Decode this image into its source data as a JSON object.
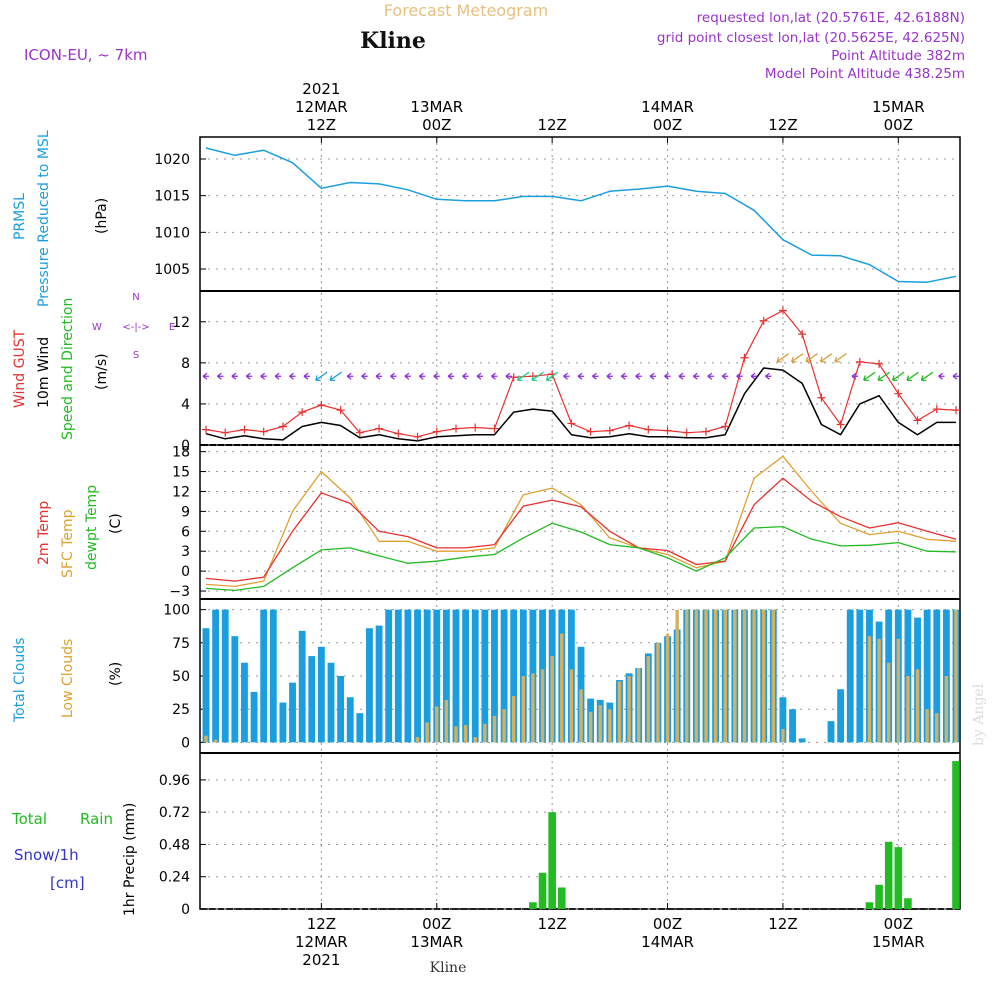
{
  "header": {
    "title": "Forecast Meteogram",
    "location": "Kline",
    "model": "ICON-EU, ~ 7km",
    "requested": "requested lon,lat (20.5761E, 42.6188N)",
    "gridpoint": "grid point closest lon,lat (20.5625E, 42.625N)",
    "point_altitude": "Point Altitude 382m",
    "model_altitude": "Model Point Altitude 438.25m",
    "watermark": "by Angel",
    "footer_location": "Kline"
  },
  "time_axis": {
    "start": "2021-03-12 00Z",
    "end": "2021-03-15 06Z",
    "top_ticks": [
      {
        "h": 12,
        "lines": [
          "2021",
          "12MAR",
          "12Z"
        ]
      },
      {
        "h": 24,
        "lines": [
          "13MAR",
          "00Z"
        ]
      },
      {
        "h": 36,
        "lines": [
          "12Z"
        ]
      },
      {
        "h": 48,
        "lines": [
          "14MAR",
          "00Z"
        ]
      },
      {
        "h": 60,
        "lines": [
          "12Z"
        ]
      },
      {
        "h": 72,
        "lines": [
          "15MAR",
          "00Z"
        ]
      }
    ],
    "bottom_ticks": [
      {
        "h": 12,
        "lines": [
          "12Z",
          "12MAR",
          "2021"
        ]
      },
      {
        "h": 24,
        "lines": [
          "00Z",
          "13MAR"
        ]
      },
      {
        "h": 36,
        "lines": [
          "12Z"
        ]
      },
      {
        "h": 48,
        "lines": [
          "00Z",
          "14MAR"
        ]
      },
      {
        "h": 60,
        "lines": [
          "12Z"
        ]
      },
      {
        "h": 72,
        "lines": [
          "00Z",
          "15MAR"
        ]
      }
    ]
  },
  "colors": {
    "pressure": "#1a9ee0",
    "gust": "#e83030",
    "wind": "#000000",
    "direction": "#22bb22",
    "arrows": "#8a2be2",
    "temp2m": "#e83030",
    "sfctemp": "#e0a030",
    "dewpt": "#22bb22",
    "total_clouds": "#1a9ee0",
    "low_clouds": "#d4b060",
    "rain": "#22bb22",
    "snow": "#3333cc",
    "header_title": "#e8c080",
    "header_info": "#9933cc"
  },
  "panels": {
    "pressure": {
      "labels": [
        "PRMSL",
        "Pressure Reduced to MSL",
        "(hPa)"
      ],
      "ticks": [
        1005,
        1010,
        1015,
        1020
      ]
    },
    "wind": {
      "labels": [
        "Wind GUST",
        "10m Wind",
        "Speed and Direction",
        "(m/s)"
      ],
      "ticks": [
        0,
        4,
        8,
        12
      ],
      "compass": {
        "n": "N",
        "s": "S",
        "w": "W",
        "e": "E",
        "v": "^\n|\nv",
        "h": "<-|->"
      }
    },
    "temperature": {
      "labels": [
        "2m Temp",
        "SFC Temp",
        "dewpt Temp",
        "(C)"
      ],
      "ticks": [
        -3,
        0,
        3,
        6,
        9,
        12,
        15,
        18
      ]
    },
    "clouds": {
      "labels": [
        "Total Clouds",
        "Low Clouds",
        "(%)"
      ],
      "ticks": [
        0,
        25,
        50,
        75,
        100
      ]
    },
    "precip": {
      "labels": [
        "Total",
        "Rain",
        "Snow/1h",
        "[cm]",
        "1hr Precip (mm)"
      ],
      "ticks": [
        0,
        0.24,
        0.48,
        0.72,
        0.96
      ]
    }
  },
  "chart_data": [
    {
      "type": "line",
      "title": "PRMSL Pressure Reduced to MSL",
      "ylabel": "(hPa)",
      "ylim": [
        1002,
        1023
      ],
      "x_hours": [
        0,
        3,
        6,
        9,
        12,
        15,
        18,
        21,
        24,
        27,
        30,
        33,
        36,
        39,
        42,
        45,
        48,
        51,
        54,
        57,
        60,
        63,
        66,
        69,
        72,
        75,
        78
      ],
      "series": [
        {
          "name": "PRMSL",
          "values": [
            1021.5,
            1020.5,
            1021.2,
            1019.5,
            1016,
            1016.8,
            1016.6,
            1015.8,
            1014.5,
            1014.3,
            1014.3,
            1014.9,
            1014.9,
            1014.3,
            1015.6,
            1015.9,
            1016.3,
            1015.6,
            1015.3,
            1013,
            1009,
            1006.9,
            1006.8,
            1005.6,
            1003.3,
            1003.2,
            1004
          ]
        }
      ]
    },
    {
      "type": "line",
      "title": "Wind GUST / 10m Wind",
      "ylabel": "(m/s)",
      "ylim": [
        0,
        15
      ],
      "x_hours": [
        0,
        2,
        4,
        6,
        8,
        10,
        12,
        14,
        16,
        18,
        20,
        22,
        24,
        26,
        28,
        30,
        32,
        34,
        36,
        38,
        40,
        42,
        44,
        46,
        48,
        50,
        52,
        54,
        56,
        58,
        60,
        62,
        64,
        66,
        68,
        70,
        72,
        74,
        76,
        78
      ],
      "series": [
        {
          "name": "Wind GUST",
          "values": [
            1.5,
            1.2,
            1.5,
            1.3,
            1.8,
            3.2,
            3.9,
            3.4,
            1.2,
            1.6,
            1.1,
            0.8,
            1.3,
            1.6,
            1.7,
            1.6,
            6.6,
            6.7,
            6.9,
            2.1,
            1.3,
            1.4,
            1.9,
            1.5,
            1.4,
            1.2,
            1.3,
            1.8,
            8.5,
            12.1,
            13.1,
            10.8,
            4.6,
            2.0,
            8.1,
            7.9,
            5.0,
            2.4,
            3.5,
            3.4
          ]
        },
        {
          "name": "10m Wind",
          "values": [
            1.1,
            0.6,
            0.9,
            0.6,
            0.5,
            1.8,
            2.2,
            1.9,
            0.7,
            1.0,
            0.6,
            0.4,
            0.8,
            0.9,
            1.0,
            1.0,
            3.2,
            3.5,
            3.3,
            1.0,
            0.7,
            0.8,
            1.1,
            0.8,
            0.8,
            0.7,
            0.7,
            1.0,
            5.0,
            7.5,
            7.3,
            6.0,
            2.0,
            1.0,
            4.0,
            4.8,
            2.2,
            1.0,
            2.2,
            2.2
          ]
        }
      ]
    },
    {
      "type": "line",
      "title": "2m Temp / SFC Temp / dewpt Temp",
      "ylabel": "(C)",
      "ylim": [
        -4.2,
        19
      ],
      "x_hours": [
        0,
        3,
        6,
        9,
        12,
        15,
        18,
        21,
        24,
        27,
        30,
        33,
        36,
        39,
        42,
        45,
        48,
        51,
        54,
        57,
        60,
        63,
        66,
        69,
        72,
        75,
        78
      ],
      "series": [
        {
          "name": "2m Temp",
          "values": [
            -1.1,
            -1.5,
            -0.9,
            6.0,
            11.8,
            10.2,
            6.0,
            5.2,
            3.5,
            3.5,
            4.0,
            9.8,
            10.7,
            9.7,
            6.0,
            3.5,
            3.1,
            1.0,
            1.5,
            10.0,
            14.0,
            10.5,
            8.2,
            6.5,
            7.3,
            6.0,
            4.8
          ]
        },
        {
          "name": "SFC Temp",
          "values": [
            -2.0,
            -2.3,
            -1.5,
            9.0,
            15.0,
            11.0,
            4.5,
            4.5,
            3.0,
            3.0,
            3.5,
            11.5,
            12.5,
            10.0,
            5.0,
            3.5,
            2.5,
            0.5,
            1.5,
            14.0,
            17.3,
            12.0,
            7.2,
            5.5,
            6.0,
            4.8,
            4.5
          ]
        },
        {
          "name": "dewpt Temp",
          "values": [
            -2.6,
            -2.9,
            -2.3,
            0.5,
            3.2,
            3.5,
            2.3,
            1.2,
            1.5,
            2.1,
            2.5,
            5.0,
            7.2,
            5.9,
            4.0,
            3.5,
            2.0,
            0.0,
            2.0,
            6.5,
            6.7,
            4.8,
            3.8,
            3.9,
            4.3,
            3.0,
            2.9
          ]
        }
      ]
    },
    {
      "type": "bar",
      "title": "Total Clouds / Low Clouds",
      "ylabel": "(%)",
      "ylim": [
        0,
        100
      ],
      "x_hours": [
        0,
        1,
        2,
        3,
        4,
        5,
        6,
        7,
        8,
        9,
        10,
        11,
        12,
        13,
        14,
        15,
        16,
        17,
        18,
        19,
        20,
        21,
        22,
        23,
        24,
        25,
        26,
        27,
        28,
        29,
        30,
        31,
        32,
        33,
        34,
        35,
        36,
        37,
        38,
        39,
        40,
        41,
        42,
        43,
        44,
        45,
        46,
        47,
        48,
        49,
        50,
        51,
        52,
        53,
        54,
        55,
        56,
        57,
        58,
        59,
        60,
        61,
        62,
        63,
        64,
        65,
        66,
        67,
        68,
        69,
        70,
        71,
        72,
        73,
        74,
        75,
        76,
        77,
        78
      ],
      "series": [
        {
          "name": "Total Clouds",
          "values": [
            86,
            100,
            100,
            80,
            60,
            38,
            100,
            100,
            30,
            45,
            84,
            65,
            72,
            60,
            50,
            34,
            22,
            86,
            88,
            100,
            100,
            100,
            100,
            100,
            100,
            100,
            100,
            100,
            100,
            100,
            100,
            100,
            100,
            100,
            100,
            100,
            100,
            100,
            100,
            72,
            33,
            32,
            30,
            47,
            52,
            56,
            67,
            75,
            80,
            85,
            100,
            100,
            100,
            100,
            100,
            100,
            100,
            100,
            100,
            100,
            34,
            25,
            3,
            0,
            0,
            16,
            40,
            100,
            100,
            100,
            91,
            100,
            100,
            100,
            94,
            100,
            100,
            100,
            100
          ]
        },
        {
          "name": "Low Clouds",
          "values": [
            5,
            2,
            0,
            0,
            0,
            0,
            0,
            0,
            0,
            0,
            0,
            0,
            0,
            0,
            0,
            0,
            0,
            0,
            0,
            0,
            0,
            0,
            4,
            15,
            27,
            32,
            12,
            13,
            4,
            14,
            20,
            25,
            35,
            50,
            52,
            55,
            65,
            82,
            55,
            40,
            23,
            28,
            25,
            46,
            50,
            56,
            65,
            75,
            82,
            100,
            100,
            100,
            100,
            100,
            100,
            100,
            100,
            100,
            100,
            100,
            10,
            0,
            0,
            0,
            0,
            0,
            0,
            0,
            0,
            80,
            78,
            60,
            78,
            50,
            55,
            25,
            22,
            50,
            100
          ]
        }
      ]
    },
    {
      "type": "bar",
      "title": "Total Rain / Snow 1h",
      "ylabel": "1hr Precip (mm)",
      "ylim": [
        0,
        1.16
      ],
      "x_hours": [
        34,
        35,
        36,
        37,
        38,
        69,
        70,
        71,
        72,
        73,
        78
      ],
      "series": [
        {
          "name": "Total Rain",
          "values": [
            0.05,
            0.27,
            0.72,
            0.16,
            0.0,
            0.05,
            0.18,
            0.5,
            0.46,
            0.08,
            1.1
          ]
        },
        {
          "name": "Snow/1h",
          "values": [
            0,
            0,
            0,
            0,
            0,
            0,
            0,
            0,
            0,
            0,
            0
          ]
        }
      ]
    }
  ],
  "wind_arrows": {
    "description": "direction markers along y=6.7",
    "x_hours": [
      0,
      1.5,
      3,
      4.5,
      6,
      7.5,
      9,
      10.5,
      12,
      13.5,
      15,
      16.5,
      18,
      19.5,
      21,
      22.5,
      24,
      25.5,
      27,
      28.5,
      30,
      31.5,
      33,
      34.5,
      36,
      37.5,
      39,
      40.5,
      42,
      43.5,
      45,
      46.5,
      48,
      49.5,
      51,
      52.5,
      54,
      55.5,
      57,
      58.5,
      60,
      61.5,
      63,
      64.5,
      66,
      67.5,
      69,
      70.5,
      72,
      73.5,
      75,
      76.5,
      78
    ],
    "highlight_groups": [
      {
        "from": 11,
        "to": 14,
        "color": "#1a9ee0"
      },
      {
        "from": 33,
        "to": 37,
        "color": "#22cc88"
      },
      {
        "from": 59,
        "to": 66,
        "color": "#d4a040"
      },
      {
        "from": 69,
        "to": 75,
        "color": "#22bb22"
      }
    ]
  }
}
